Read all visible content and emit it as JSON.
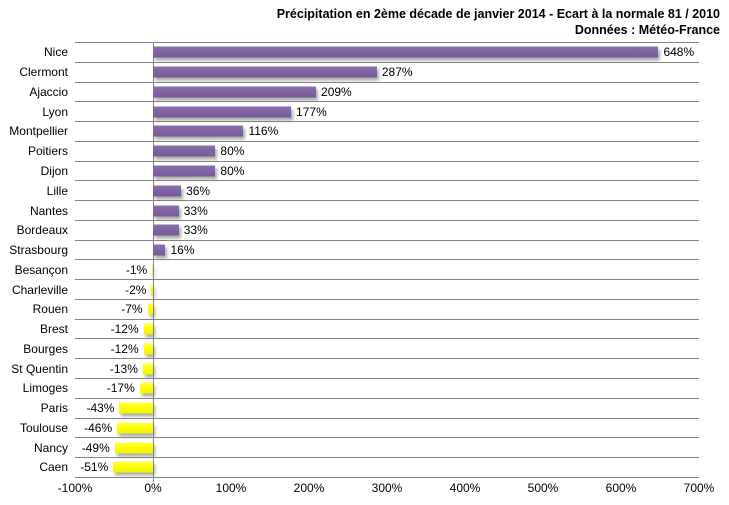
{
  "chart_data": {
    "type": "bar",
    "orientation": "horizontal",
    "title": "Précipitation en 2ème décade de janvier 2014 - Ecart à la normale 81 / 2010",
    "subtitle": "Données : Météo-France",
    "categories": [
      "Nice",
      "Clermont",
      "Ajaccio",
      "Lyon",
      "Montpellier",
      "Poitiers",
      "Dijon",
      "Lille",
      "Nantes",
      "Bordeaux",
      "Strasbourg",
      "Besançon",
      "Charleville",
      "Rouen",
      "Brest",
      "Bourges",
      "St Quentin",
      "Limoges",
      "Paris",
      "Toulouse",
      "Nancy",
      "Caen"
    ],
    "values": [
      648,
      287,
      209,
      177,
      116,
      80,
      80,
      36,
      33,
      33,
      16,
      -1,
      -2,
      -7,
      -12,
      -12,
      -13,
      -17,
      -43,
      -46,
      -49,
      -51
    ],
    "value_suffix": "%",
    "xlim": [
      -100,
      700
    ],
    "x_tick_values": [
      -100,
      0,
      100,
      200,
      300,
      400,
      500,
      600,
      700
    ],
    "x_tick_labels": [
      "-100%",
      "0%",
      "100%",
      "200%",
      "300%",
      "400%",
      "500%",
      "600%",
      "700%"
    ],
    "positive_color": "#8064A2",
    "negative_color": "#FFFF00",
    "gridline_color": "#848484",
    "grid": "horizontal-category-separators",
    "legend": "none",
    "data_labels": "outside-end"
  }
}
